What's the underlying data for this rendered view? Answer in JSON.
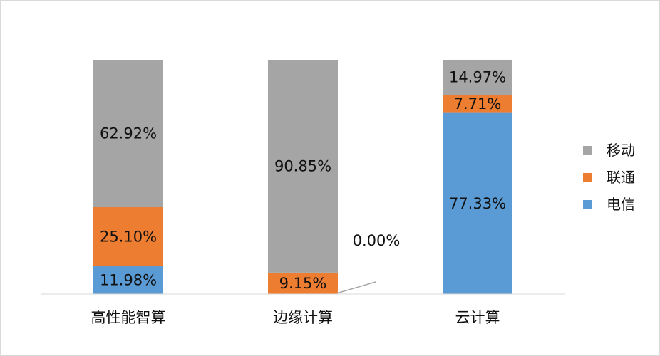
{
  "chart_data": {
    "type": "bar",
    "stacked": true,
    "normalized": true,
    "title": "",
    "xlabel": "",
    "ylabel": "",
    "ylim": [
      0,
      100
    ],
    "grid": false,
    "legend_position": "right",
    "categories": [
      "高性能智算",
      "边缘计算",
      "云计算"
    ],
    "series": [
      {
        "name": "电信",
        "color": "#5B9BD5",
        "values": [
          11.98,
          0.0,
          77.33
        ],
        "labels": [
          "11.98%",
          "0.00%",
          "77.33%"
        ]
      },
      {
        "name": "联通",
        "color": "#ED7D31",
        "values": [
          25.1,
          9.15,
          7.71
        ],
        "labels": [
          "25.10%",
          "9.15%",
          "7.71%"
        ]
      },
      {
        "name": "移动",
        "color": "#A5A5A5",
        "values": [
          62.92,
          90.85,
          14.97
        ],
        "labels": [
          "62.92%",
          "90.85%",
          "14.97%"
        ]
      }
    ],
    "legend_order": [
      "移动",
      "联通",
      "电信"
    ]
  }
}
